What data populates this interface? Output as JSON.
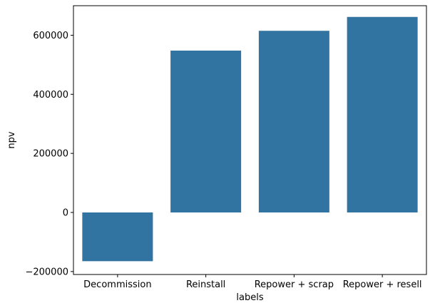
{
  "chart_data": {
    "type": "bar",
    "title": "",
    "xlabel": "labels",
    "ylabel": "npv",
    "categories": [
      "Decommission",
      "Reinstall",
      "Repower + scrap",
      "Repower + resell"
    ],
    "values": [
      -165000,
      548000,
      615000,
      662000
    ],
    "ylim": [
      -210000,
      700000
    ],
    "yticks": [
      -200000,
      0,
      200000,
      400000,
      600000
    ],
    "ytick_labels": [
      "−200000",
      "0",
      "200000",
      "400000",
      "600000"
    ],
    "grid": false,
    "bar_color": "#3274a1"
  }
}
